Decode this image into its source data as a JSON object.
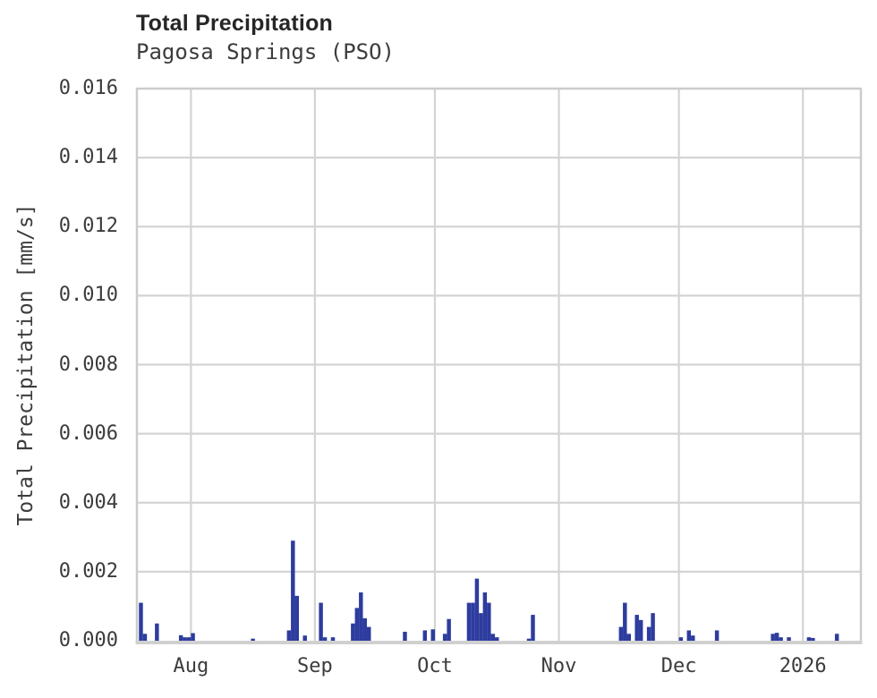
{
  "header": {
    "title": "Total Precipitation",
    "subtitle": "Pagosa Springs (PSO)"
  },
  "colors": {
    "bar": "#2d3c9e",
    "gridline": "#d4d4d4",
    "spine": "#cccccc",
    "bottom_spine": "#d0d0d0",
    "text": "#3c3c3c",
    "title_text": "#262626",
    "background": "#ffffff"
  },
  "chart_data": {
    "type": "bar",
    "title": "Total Precipitation",
    "subtitle": "Pagosa Springs (PSO)",
    "xlabel": "",
    "ylabel": "Total Precipitation [mm/s]",
    "grid": true,
    "legend": "none",
    "ylim": [
      0,
      0.016
    ],
    "x_range": [
      "2025-07-18T12:00:00",
      "2026-01-15T12:00:00"
    ],
    "y_ticks": [
      {
        "value": 0.0,
        "label": "0.000"
      },
      {
        "value": 0.002,
        "label": "0.002"
      },
      {
        "value": 0.004,
        "label": "0.004"
      },
      {
        "value": 0.006,
        "label": "0.006"
      },
      {
        "value": 0.008,
        "label": "0.008"
      },
      {
        "value": 0.01,
        "label": "0.010"
      },
      {
        "value": 0.012,
        "label": "0.012"
      },
      {
        "value": 0.014,
        "label": "0.014"
      },
      {
        "value": 0.016,
        "label": "0.016"
      }
    ],
    "x_ticks": [
      {
        "date": "2025-08-01",
        "label": "Aug"
      },
      {
        "date": "2025-09-01",
        "label": "Sep"
      },
      {
        "date": "2025-10-01",
        "label": "Oct"
      },
      {
        "date": "2025-11-01",
        "label": "Nov"
      },
      {
        "date": "2025-12-01",
        "label": "Dec"
      },
      {
        "date": "2026-01-01",
        "label": "2026"
      }
    ],
    "series": [
      {
        "name": "Total Precipitation [mm/s]",
        "points": [
          {
            "date": "2025-07-19",
            "value": 0.0011
          },
          {
            "date": "2025-07-20",
            "value": 0.0002
          },
          {
            "date": "2025-07-23",
            "value": 0.0005
          },
          {
            "date": "2025-07-29",
            "value": 0.00016
          },
          {
            "date": "2025-07-30",
            "value": 0.0001
          },
          {
            "date": "2025-07-31",
            "value": 0.0001
          },
          {
            "date": "2025-08-01",
            "value": 0.00022
          },
          {
            "date": "2025-08-16",
            "value": 6e-05
          },
          {
            "date": "2025-08-25",
            "value": 0.0003
          },
          {
            "date": "2025-08-26",
            "value": 0.0029
          },
          {
            "date": "2025-08-27",
            "value": 0.0013
          },
          {
            "date": "2025-08-29",
            "value": 0.00015
          },
          {
            "date": "2025-09-02",
            "value": 0.0011
          },
          {
            "date": "2025-09-03",
            "value": 0.0001
          },
          {
            "date": "2025-09-05",
            "value": 0.0001
          },
          {
            "date": "2025-09-10",
            "value": 0.0005
          },
          {
            "date": "2025-09-11",
            "value": 0.00095
          },
          {
            "date": "2025-09-12",
            "value": 0.0014
          },
          {
            "date": "2025-09-13",
            "value": 0.00065
          },
          {
            "date": "2025-09-14",
            "value": 0.0004
          },
          {
            "date": "2025-09-23",
            "value": 0.00026
          },
          {
            "date": "2025-09-28",
            "value": 0.0003
          },
          {
            "date": "2025-09-30",
            "value": 0.00033
          },
          {
            "date": "2025-10-03",
            "value": 0.0002
          },
          {
            "date": "2025-10-04",
            "value": 0.00063
          },
          {
            "date": "2025-10-09",
            "value": 0.0011
          },
          {
            "date": "2025-10-10",
            "value": 0.0011
          },
          {
            "date": "2025-10-11",
            "value": 0.0018
          },
          {
            "date": "2025-10-12",
            "value": 0.0008
          },
          {
            "date": "2025-10-13",
            "value": 0.0014
          },
          {
            "date": "2025-10-14",
            "value": 0.0011
          },
          {
            "date": "2025-10-15",
            "value": 0.0002
          },
          {
            "date": "2025-10-16",
            "value": 0.0001
          },
          {
            "date": "2025-10-24",
            "value": 6e-05
          },
          {
            "date": "2025-10-25",
            "value": 0.00075
          },
          {
            "date": "2025-11-16",
            "value": 0.0004
          },
          {
            "date": "2025-11-17",
            "value": 0.0011
          },
          {
            "date": "2025-11-18",
            "value": 0.0002
          },
          {
            "date": "2025-11-20",
            "value": 0.00075
          },
          {
            "date": "2025-11-21",
            "value": 0.0006
          },
          {
            "date": "2025-11-23",
            "value": 0.0004
          },
          {
            "date": "2025-11-24",
            "value": 0.0008
          },
          {
            "date": "2025-12-01",
            "value": 0.0001
          },
          {
            "date": "2025-12-03",
            "value": 0.0003
          },
          {
            "date": "2025-12-04",
            "value": 0.00015
          },
          {
            "date": "2025-12-10",
            "value": 0.0003
          },
          {
            "date": "2025-12-24",
            "value": 0.0002
          },
          {
            "date": "2025-12-25",
            "value": 0.00023
          },
          {
            "date": "2025-12-26",
            "value": 0.0001
          },
          {
            "date": "2025-12-28",
            "value": 0.0001
          },
          {
            "date": "2026-01-02",
            "value": 0.0001
          },
          {
            "date": "2026-01-03",
            "value": 8e-05
          },
          {
            "date": "2026-01-09",
            "value": 0.0002
          }
        ]
      }
    ]
  }
}
